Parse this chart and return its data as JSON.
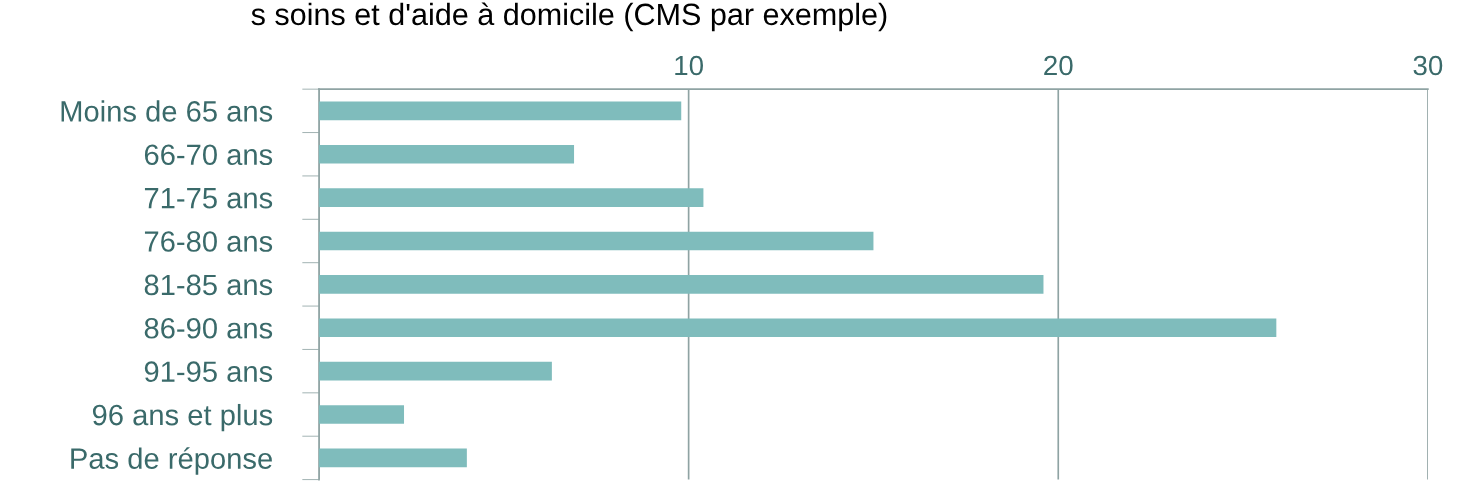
{
  "chart_data": {
    "type": "bar",
    "orientation": "horizontal",
    "title": "s soins et d'aide à domicile (CMS par exemple)",
    "categories": [
      "Moins de 65 ans",
      "66-70 ans",
      "71-75 ans",
      "76-80 ans",
      "81-85 ans",
      "86-90 ans",
      "91-95 ans",
      "96 ans et plus",
      "Pas de réponse"
    ],
    "values": [
      9.8,
      6.9,
      10.4,
      15.0,
      19.6,
      25.9,
      6.3,
      2.3,
      4.0
    ],
    "color": "#7fbcbc",
    "xlim": [
      0,
      30
    ],
    "xticks": [
      {
        "value": 0,
        "label": null
      },
      10,
      20,
      30
    ],
    "grid": "x"
  }
}
